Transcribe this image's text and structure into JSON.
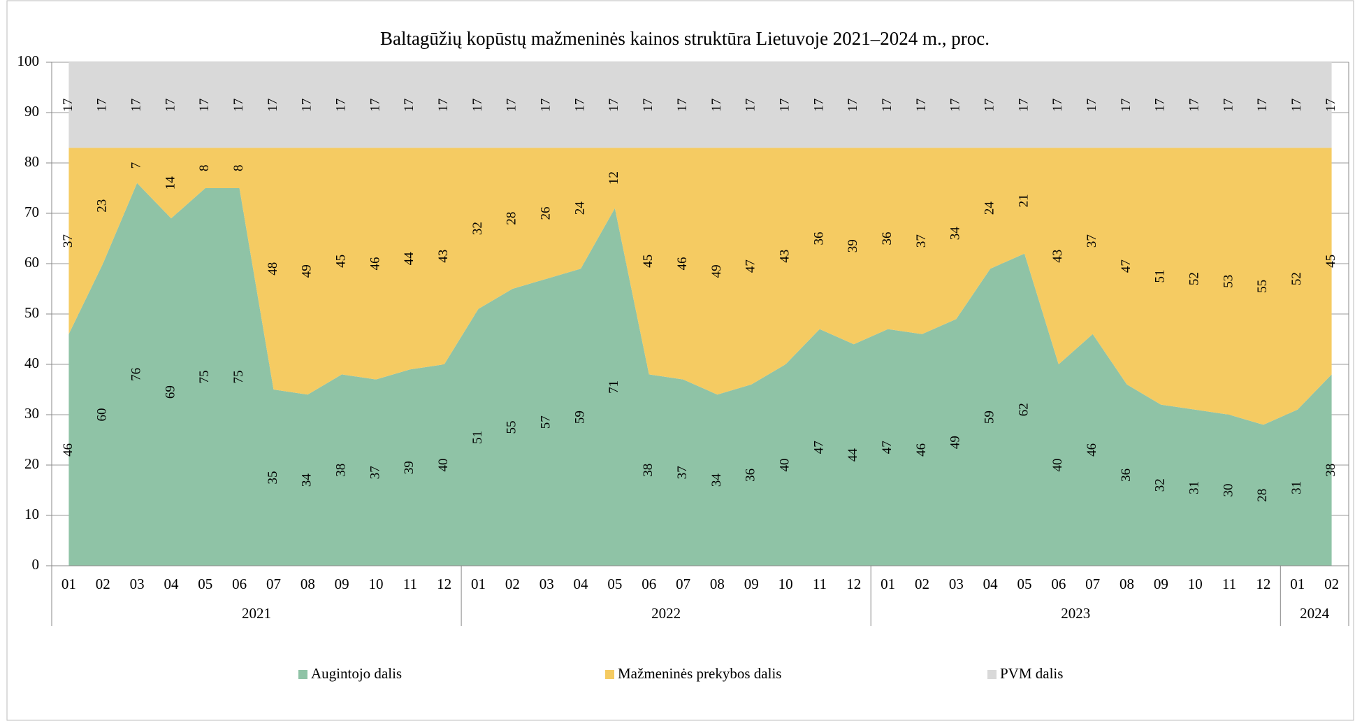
{
  "chart_data": {
    "type": "stacked_area",
    "title": "Baltagūžių kopūstų mažmeninės kainos struktūra Lietuvoje 2021–2024 m., proc.",
    "categories": [
      "01",
      "02",
      "03",
      "04",
      "05",
      "06",
      "07",
      "08",
      "09",
      "10",
      "11",
      "12",
      "01",
      "02",
      "03",
      "04",
      "05",
      "06",
      "07",
      "08",
      "09",
      "10",
      "11",
      "12",
      "01",
      "02",
      "03",
      "04",
      "05",
      "06",
      "07",
      "08",
      "09",
      "10",
      "11",
      "12",
      "01",
      "02"
    ],
    "groups": [
      {
        "label": "2021",
        "span": 12
      },
      {
        "label": "2022",
        "span": 12
      },
      {
        "label": "2023",
        "span": 12
      },
      {
        "label": "2024",
        "span": 2
      }
    ],
    "series": [
      {
        "name": "Augintojo dalis",
        "color": "#8fc3a6",
        "values": [
          46,
          60,
          76,
          69,
          75,
          75,
          35,
          34,
          38,
          37,
          39,
          40,
          51,
          55,
          57,
          59,
          71,
          38,
          37,
          34,
          36,
          40,
          47,
          44,
          47,
          46,
          49,
          59,
          62,
          40,
          46,
          36,
          32,
          31,
          30,
          28,
          31,
          38
        ]
      },
      {
        "name": "Mažmeninės prekybos dalis",
        "color": "#f5cb62",
        "values": [
          37,
          23,
          7,
          14,
          8,
          8,
          48,
          49,
          45,
          46,
          44,
          43,
          32,
          28,
          26,
          24,
          12,
          45,
          46,
          49,
          47,
          43,
          36,
          39,
          36,
          37,
          34,
          24,
          21,
          43,
          37,
          47,
          51,
          52,
          53,
          55,
          52,
          45
        ]
      },
      {
        "name": "PVM dalis",
        "color": "#d9d9d9",
        "values": [
          17,
          17,
          17,
          17,
          17,
          17,
          17,
          17,
          17,
          17,
          17,
          17,
          17,
          17,
          17,
          17,
          17,
          17,
          17,
          17,
          17,
          17,
          17,
          17,
          17,
          17,
          17,
          17,
          17,
          17,
          17,
          17,
          17,
          17,
          17,
          17,
          17,
          17
        ]
      }
    ],
    "ylim": [
      0,
      100
    ],
    "yticks": [
      0,
      10,
      20,
      30,
      40,
      50,
      60,
      70,
      80,
      90,
      100
    ],
    "grid": true,
    "legend": "bottom"
  }
}
